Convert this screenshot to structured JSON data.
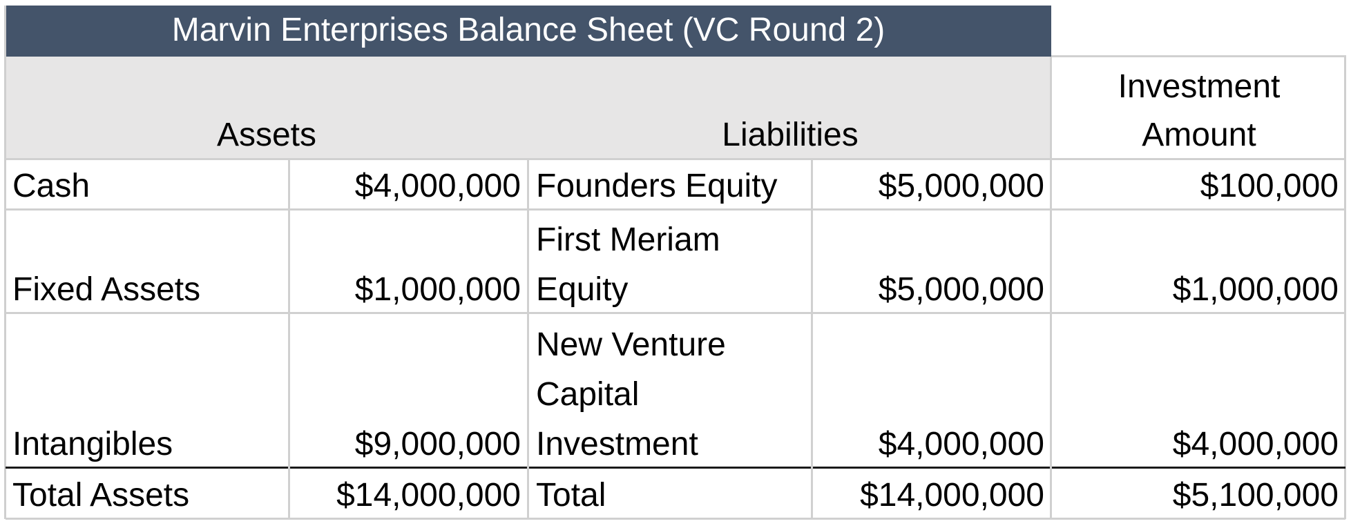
{
  "title": "Marvin Enterprises Balance Sheet (VC Round 2)",
  "header": {
    "assets": "Assets",
    "liabilities": "Liabilities",
    "investment_line1": "Investment",
    "investment_line2": "Amount"
  },
  "rows": [
    {
      "asset": "Cash",
      "asset_value": "$4,000,000",
      "liability_lines": [
        "Founders Equity"
      ],
      "liability_value": "$5,000,000",
      "investment": "$100,000"
    },
    {
      "asset": "Fixed Assets",
      "asset_value": "$1,000,000",
      "liability_lines": [
        "First Meriam",
        "Equity"
      ],
      "liability_value": "$5,000,000",
      "investment": "$1,000,000"
    },
    {
      "asset": "Intangibles",
      "asset_value": "$9,000,000",
      "liability_lines": [
        "New Venture",
        "Capital",
        "Investment"
      ],
      "liability_value": "$4,000,000",
      "investment": "$4,000,000"
    }
  ],
  "totals": {
    "asset": "Total Assets",
    "asset_value": "$14,000,000",
    "liability": "Total",
    "liability_value": "$14,000,000",
    "investment": "$5,100,000"
  },
  "colors": {
    "title_bg": "#44546a",
    "title_text": "#ffffff",
    "header_bg": "#e7e6e6"
  }
}
